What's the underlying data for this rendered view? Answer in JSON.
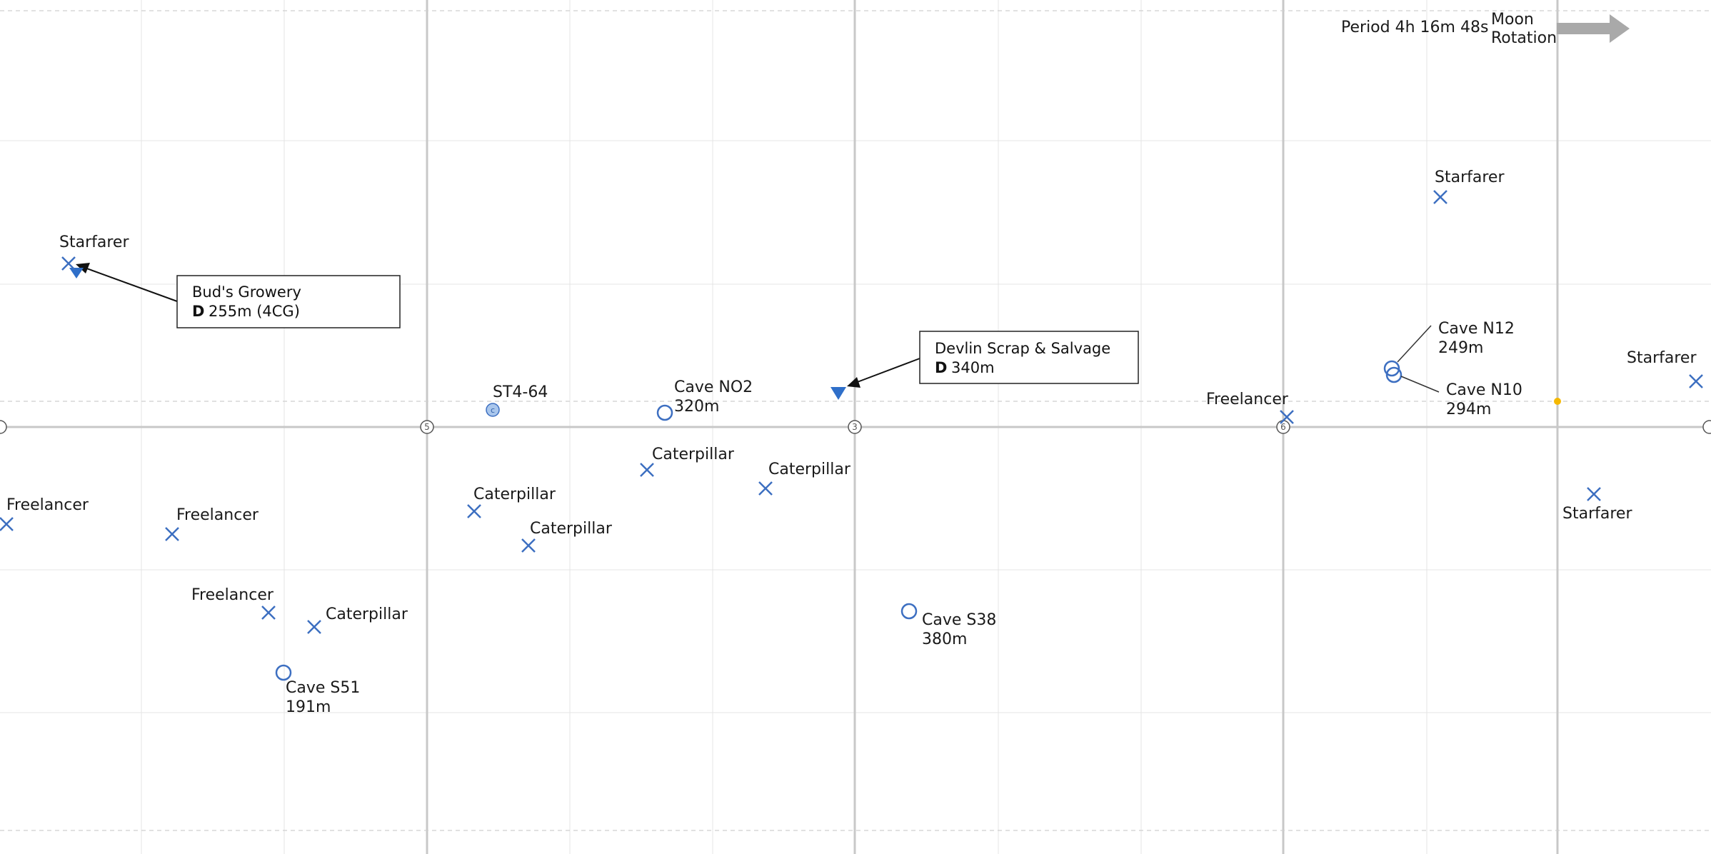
{
  "colors": {
    "marker": "#3d6fc1",
    "marker_fill": "#2f6fc9",
    "grid_minor": "#e4e4e4",
    "grid_major": "#c8c8c8",
    "dashed": "#cfcfcf",
    "sun_dot": "#f5b800",
    "arrow": "#a9a9a9",
    "box_border": "#222222"
  },
  "header": {
    "period": "Period 4h 16m 48s",
    "rotation_line1": "Moon",
    "rotation_line2": "Rotation",
    "rotation_icon": "arrow-right-icon"
  },
  "axis_labels": [
    "",
    "5",
    "3",
    "6",
    ""
  ],
  "callouts": [
    {
      "title": "Bud's Growery",
      "prefix": "D",
      "text": "255m (4CG)"
    },
    {
      "title": "Devlin Scrap & Salvage",
      "prefix": "D",
      "text": "340m"
    }
  ],
  "settlement": {
    "label": "ST4-64",
    "icon_letter": "c"
  },
  "caves": [
    {
      "name": "Cave NO2",
      "depth": "320m"
    },
    {
      "name": "Cave N12",
      "depth": "249m"
    },
    {
      "name": "Cave N10",
      "depth": "294m"
    },
    {
      "name": "Cave S38",
      "depth": "380m"
    },
    {
      "name": "Cave S51",
      "depth": "191m"
    }
  ],
  "wrecks": [
    {
      "label": "Starfarer"
    },
    {
      "label": "Starfarer"
    },
    {
      "label": "Starfarer"
    },
    {
      "label": "Starfarer"
    },
    {
      "label": "Freelancer"
    },
    {
      "label": "Freelancer"
    },
    {
      "label": "Freelancer"
    },
    {
      "label": "Freelancer"
    },
    {
      "label": "Caterpillar"
    },
    {
      "label": "Caterpillar"
    },
    {
      "label": "Caterpillar"
    },
    {
      "label": "Caterpillar"
    },
    {
      "label": "Caterpillar"
    }
  ]
}
